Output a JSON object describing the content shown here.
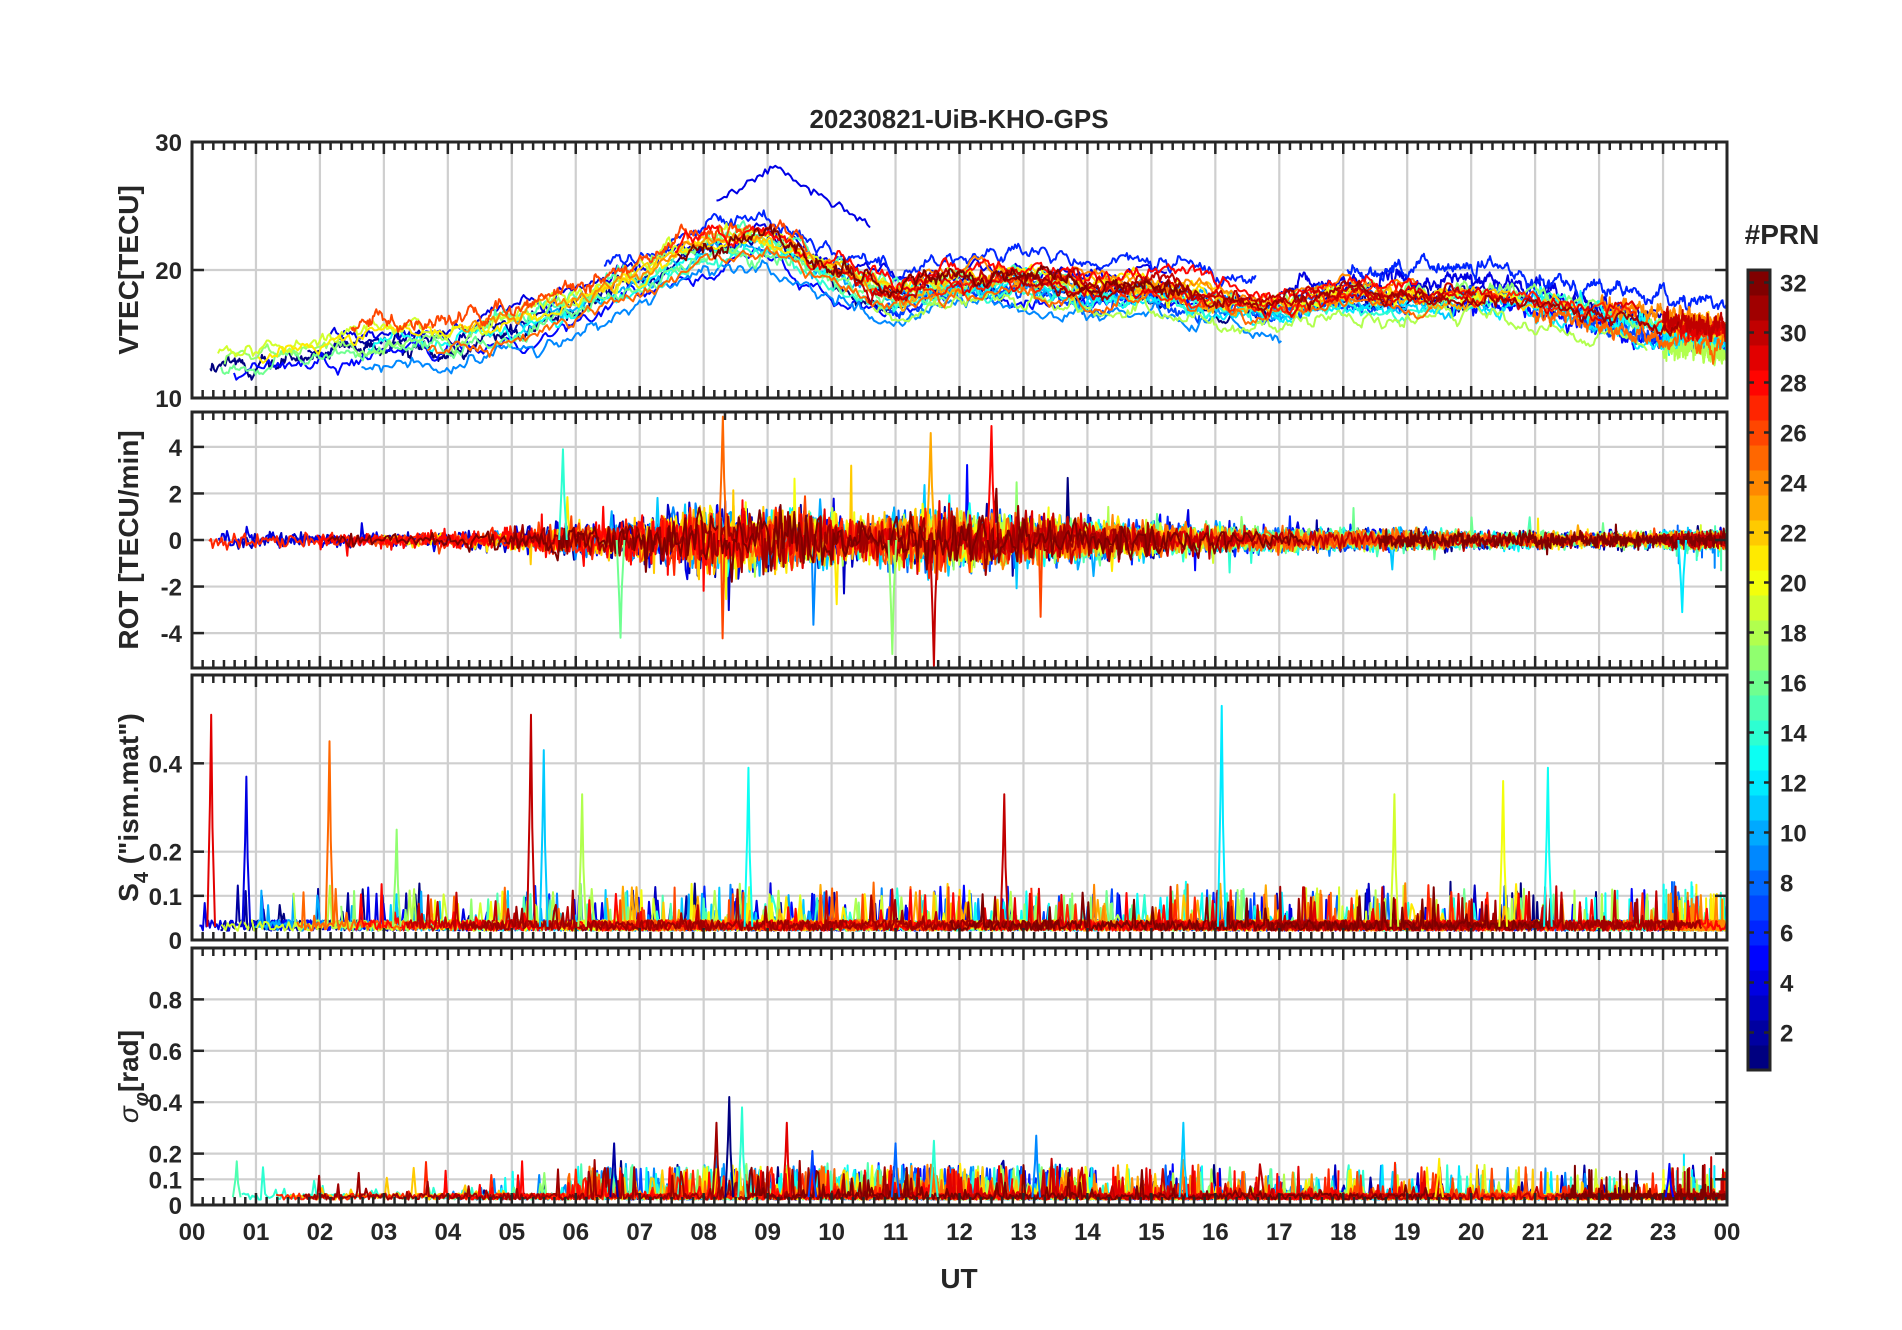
{
  "chart_data": {
    "title": "20230821-UiB-KHO-GPS",
    "type": "line",
    "xlabel": "UT",
    "x_unit": "hours UT",
    "xlim": [
      0,
      24
    ],
    "x_tick_labels": [
      "00",
      "01",
      "02",
      "03",
      "04",
      "05",
      "06",
      "07",
      "08",
      "09",
      "10",
      "11",
      "12",
      "13",
      "14",
      "15",
      "16",
      "17",
      "18",
      "19",
      "20",
      "21",
      "22",
      "23",
      "00"
    ],
    "colorbar": {
      "label": "#PRN",
      "range": [
        1,
        32
      ],
      "ticks": [
        "2",
        "4",
        "6",
        "8",
        "10",
        "12",
        "14",
        "16",
        "18",
        "20",
        "22",
        "24",
        "26",
        "28",
        "30",
        "32"
      ],
      "colormap": "jet"
    },
    "panels": [
      {
        "id": "vtec",
        "ylabel": "VTEC[TECU]",
        "ylim": [
          10,
          30
        ],
        "yticks": [
          10,
          20,
          30
        ],
        "ytick_labels": [
          "10",
          "20",
          "30"
        ],
        "trend": [
          [
            0,
            12.3
          ],
          [
            1,
            13
          ],
          [
            2,
            13.6
          ],
          [
            3,
            14.3
          ],
          [
            4,
            14.3
          ],
          [
            5,
            15.5
          ],
          [
            6,
            17
          ],
          [
            7,
            19
          ],
          [
            8,
            21.5
          ],
          [
            9,
            22
          ],
          [
            10,
            19.5
          ],
          [
            11,
            17.8
          ],
          [
            12,
            19
          ],
          [
            13,
            19
          ],
          [
            14,
            18.3
          ],
          [
            15,
            18.5
          ],
          [
            16,
            17.5
          ],
          [
            17,
            17
          ],
          [
            18,
            18
          ],
          [
            19,
            17.8
          ],
          [
            20,
            18
          ],
          [
            21,
            17.5
          ],
          [
            22,
            16.5
          ],
          [
            23,
            15.5
          ],
          [
            24,
            15
          ]
        ],
        "noise": 1.6,
        "peak_value": 28
      },
      {
        "id": "rot",
        "ylabel": "ROT [TECU/min]",
        "ylim": [
          -5.5,
          5.5
        ],
        "yticks": [
          -4,
          -2,
          0,
          2,
          4
        ],
        "ytick_labels": [
          "-4",
          "-2",
          "0",
          "2",
          "4"
        ],
        "activity": [
          [
            0,
            0.35
          ],
          [
            3,
            0.3
          ],
          [
            5,
            0.45
          ],
          [
            6.5,
            0.75
          ],
          [
            8,
            1.4
          ],
          [
            9,
            1.3
          ],
          [
            10.5,
            0.9
          ],
          [
            11.5,
            1.3
          ],
          [
            13,
            1
          ],
          [
            14,
            0.8
          ],
          [
            15.5,
            0.55
          ],
          [
            17,
            0.45
          ],
          [
            20,
            0.35
          ],
          [
            22,
            0.3
          ],
          [
            24,
            0.3
          ]
        ],
        "spikes": [
          [
            5.8,
            3.9
          ],
          [
            6.7,
            -4.2
          ],
          [
            8.3,
            5.3
          ],
          [
            10.95,
            -4.9
          ],
          [
            11.6,
            -5.4
          ],
          [
            11.55,
            4.6
          ],
          [
            12.5,
            4.9
          ],
          [
            23.3,
            -3.1
          ]
        ]
      },
      {
        "id": "s4",
        "ylabel": "S4 (\"ism.mat\")",
        "ylabel_main": "S",
        "ylabel_sub": "4",
        "ylabel_rest": " (\"ism.mat\")",
        "ylim": [
          0,
          0.6
        ],
        "yticks": [
          0,
          0.1,
          0.2,
          0.4
        ],
        "ytick_labels": [
          "0",
          "0.1",
          "0.2",
          "0.4"
        ],
        "baseline": 0.03,
        "spikes": [
          [
            0.3,
            0.51
          ],
          [
            0.85,
            0.37
          ],
          [
            2.15,
            0.45
          ],
          [
            3.2,
            0.25
          ],
          [
            5.3,
            0.51
          ],
          [
            5.5,
            0.43
          ],
          [
            6.1,
            0.33
          ],
          [
            8.7,
            0.39
          ],
          [
            12.7,
            0.33
          ],
          [
            16.1,
            0.53
          ],
          [
            18.8,
            0.33
          ],
          [
            20.5,
            0.36
          ],
          [
            21.2,
            0.39
          ]
        ]
      },
      {
        "id": "sigma_phi",
        "ylabel": "σφ[rad]",
        "ylabel_main": "σ",
        "ylabel_sub": "φ",
        "ylabel_rest": "[rad]",
        "ylim": [
          0,
          1
        ],
        "yticks": [
          0,
          0.1,
          0.2,
          0.4,
          0.6,
          0.8
        ],
        "ytick_labels": [
          "0",
          "0.1",
          "0.2",
          "0.4",
          "0.6",
          "0.8"
        ],
        "baseline": 0.03,
        "spikes": [
          [
            0.7,
            0.17
          ],
          [
            6.6,
            0.24
          ],
          [
            8.2,
            0.32
          ],
          [
            8.4,
            0.42
          ],
          [
            8.6,
            0.38
          ],
          [
            9.3,
            0.32
          ],
          [
            9.7,
            0.21
          ],
          [
            11,
            0.24
          ],
          [
            11.6,
            0.25
          ],
          [
            13.2,
            0.27
          ],
          [
            15.5,
            0.32
          ],
          [
            19.5,
            0.18
          ],
          [
            23.1,
            0.16
          ]
        ]
      }
    ],
    "series_count": 32,
    "series_prns": [
      1,
      2,
      3,
      4,
      5,
      6,
      7,
      8,
      9,
      10,
      11,
      12,
      13,
      14,
      15,
      16,
      17,
      18,
      19,
      20,
      21,
      22,
      23,
      24,
      25,
      26,
      27,
      28,
      29,
      30,
      31,
      32
    ]
  }
}
